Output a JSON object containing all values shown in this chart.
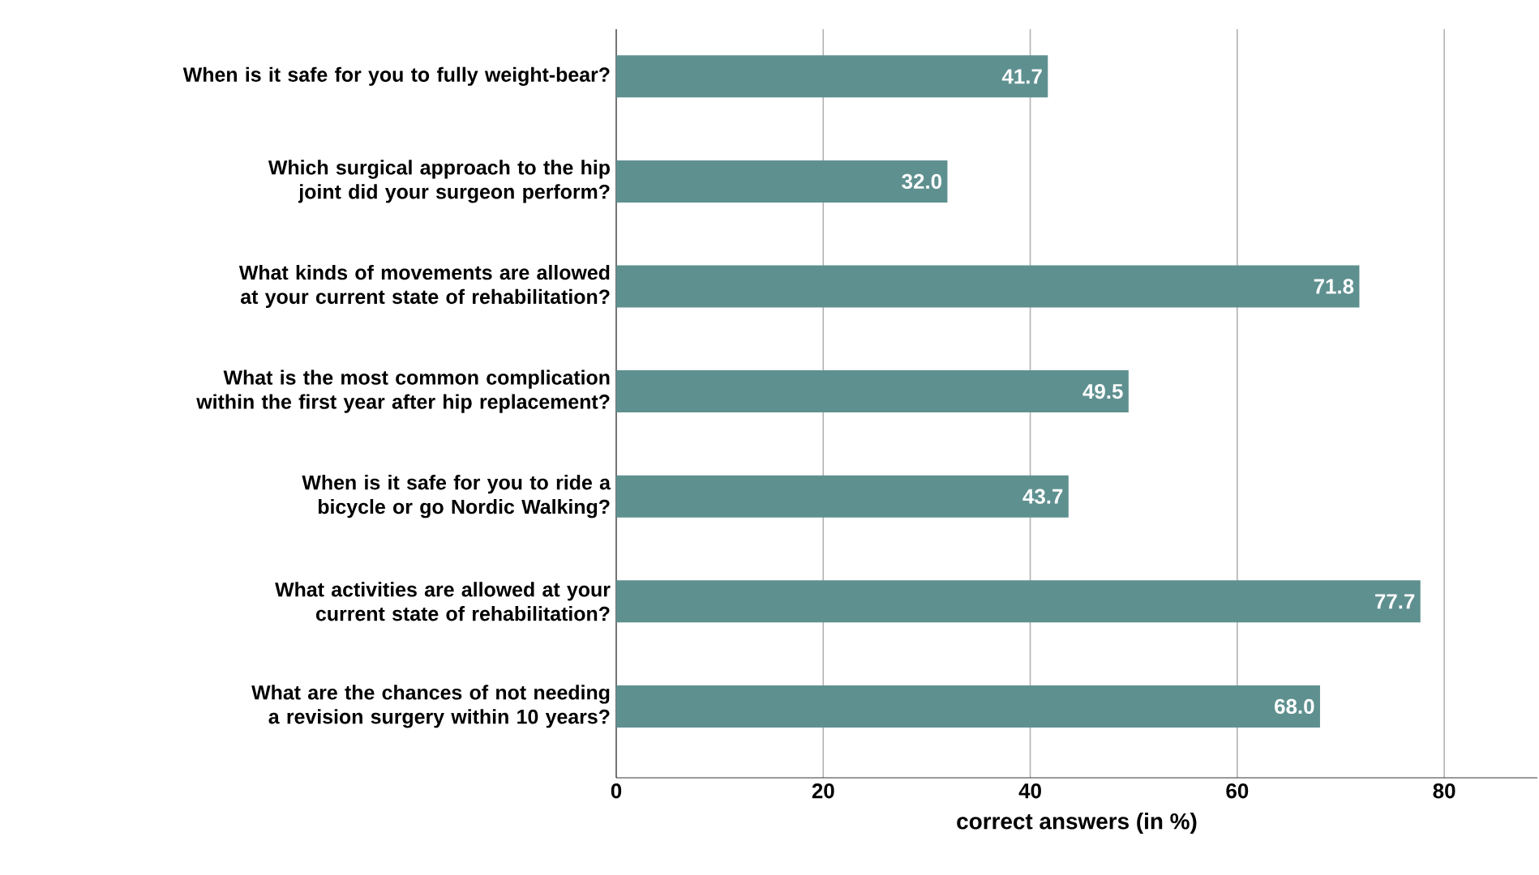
{
  "chart_data": {
    "type": "bar",
    "orientation": "horizontal",
    "categories": [
      "When is it safe for you to fully weight-bear?",
      "Which surgical approach to the hip joint did your surgeon perform?",
      "What kinds of movements are allowed at your current state of rehabilitation?",
      "What is the most common complication within the first year after hip replacement?",
      "When is it safe for you to ride a bicycle or go Nordic Walking?",
      "What activities are allowed at your current state of rehabilitation?",
      "What are the chances of not needing a revision surgery within 10 years?"
    ],
    "values": [
      41.7,
      32.0,
      71.8,
      49.5,
      43.7,
      77.7,
      68.0
    ],
    "color": "#5f9090",
    "xlabel": "correct answers (in %)",
    "xlim": [
      0,
      89
    ],
    "xticks": [
      0,
      20,
      40,
      60,
      80
    ],
    "value_labels": [
      "41.7",
      "32.0",
      "71.8",
      "49.5",
      "43.7",
      "77.7",
      "68.0"
    ],
    "grid": "x"
  }
}
